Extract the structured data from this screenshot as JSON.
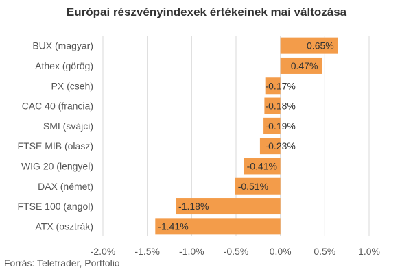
{
  "chart_data": {
    "type": "bar",
    "orientation": "horizontal",
    "title": "Európai részvényindexek értékeinek mai változása",
    "categories": [
      "BUX (magyar)",
      "Athex (görög)",
      "PX (cseh)",
      "CAC 40 (francia)",
      "SMI (svájci)",
      "FTSE MIB (olasz)",
      "WIG 20 (lengyel)",
      "DAX (német)",
      "FTSE 100 (angol)",
      "ATX (osztrák)"
    ],
    "values": [
      0.65,
      0.47,
      -0.17,
      -0.18,
      -0.19,
      -0.23,
      -0.41,
      -0.51,
      -1.18,
      -1.41
    ],
    "data_labels": [
      "0.65%",
      "0.47%",
      "-0.17%",
      "-0.18%",
      "-0.19%",
      "-0.23%",
      "-0.41%",
      "-0.51%",
      "-1.18%",
      "-1.41%"
    ],
    "xticks": [
      -2.0,
      -1.5,
      -1.0,
      -0.5,
      0.0,
      0.5,
      1.0
    ],
    "xtick_labels": [
      "-2.0%",
      "-1.5%",
      "-1.0%",
      "-0.5%",
      "0.0%",
      "0.5%",
      "1.0%"
    ],
    "xlim": [
      -2.0,
      1.0
    ],
    "bar_color": "#F39C4A",
    "grid": true
  },
  "source": "Forrás: Teletrader, Portfolio"
}
